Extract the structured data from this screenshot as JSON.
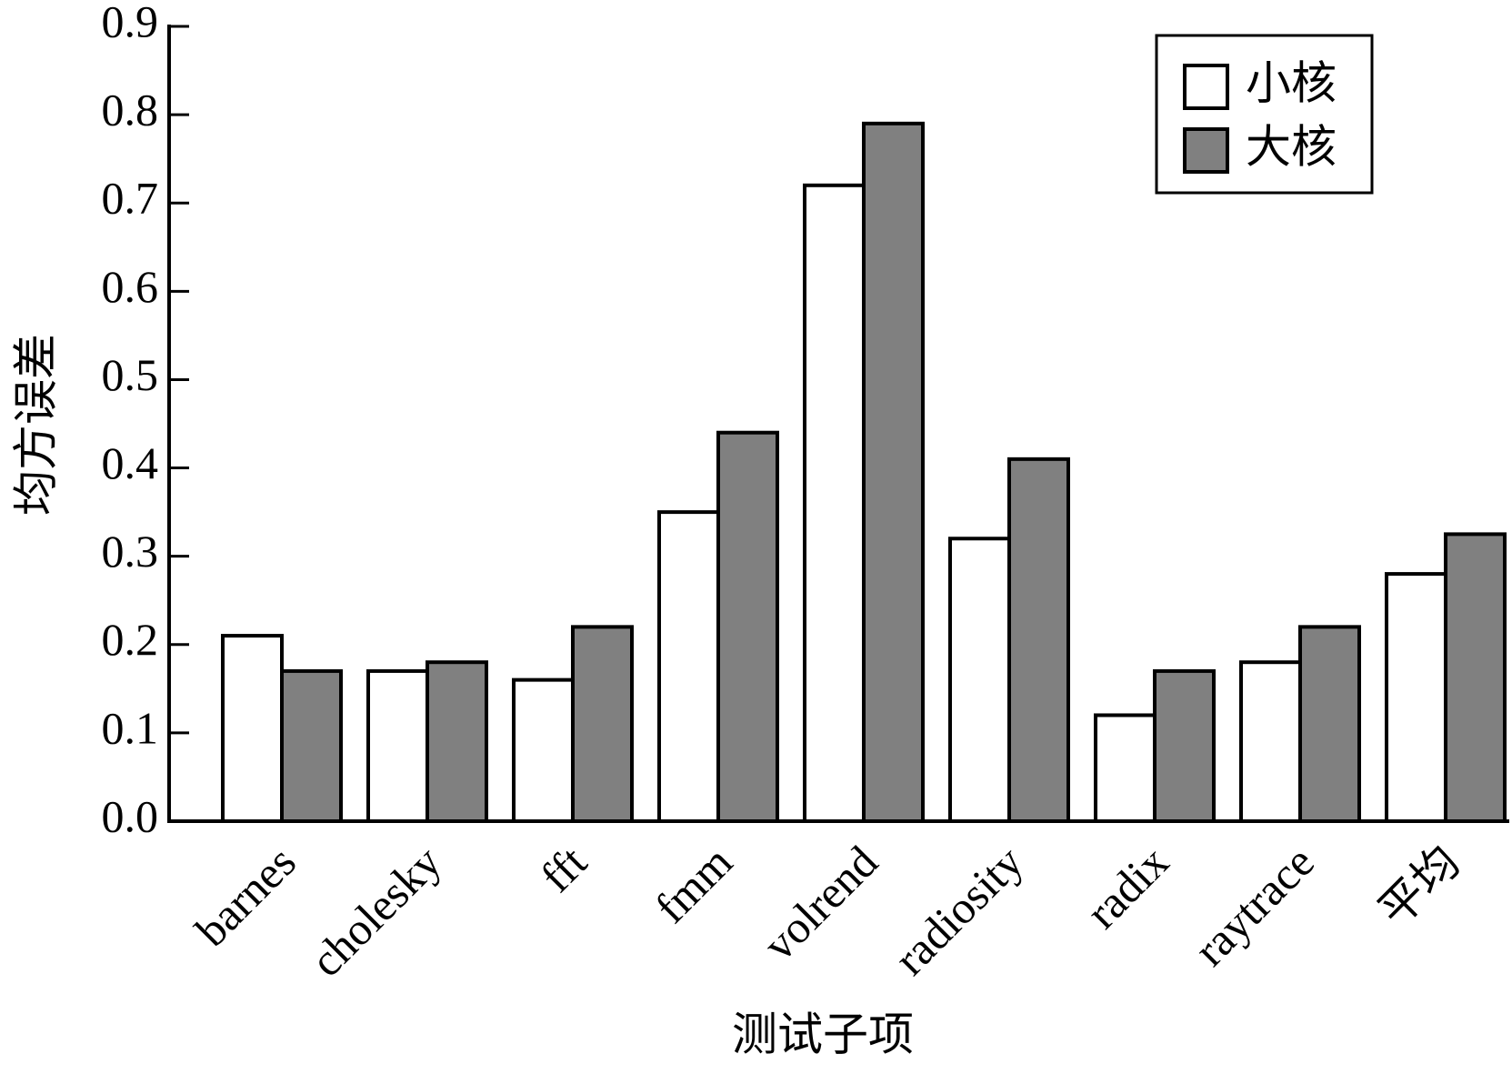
{
  "chart_data": {
    "type": "bar",
    "categories": [
      "barnes",
      "cholesky",
      "fft",
      "fmm",
      "volrend",
      "radiosity",
      "radix",
      "raytrace",
      "平均"
    ],
    "series": [
      {
        "name": "小核",
        "color": "#ffffff",
        "values": [
          0.21,
          0.17,
          0.16,
          0.35,
          0.72,
          0.32,
          0.12,
          0.18,
          0.28
        ]
      },
      {
        "name": "大核",
        "color": "#808080",
        "values": [
          0.17,
          0.18,
          0.22,
          0.44,
          0.79,
          0.41,
          0.17,
          0.22,
          0.325
        ]
      }
    ],
    "xlabel": "测试子项",
    "ylabel": "均方误差",
    "ylim": [
      0,
      0.9
    ],
    "yticks": [
      {
        "value": 0,
        "label": "0.0"
      },
      0.1,
      0.2,
      0.3,
      0.4,
      0.5,
      0.6,
      0.7,
      0.8,
      0.9
    ],
    "legend": "upper right"
  }
}
